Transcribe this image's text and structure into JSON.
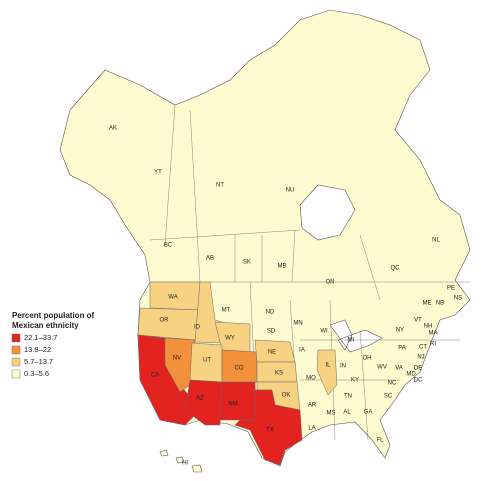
{
  "legend": {
    "title": [
      "Percent population of",
      "Mexican ethnicity"
    ],
    "classes": [
      {
        "label": "22.1–33.7",
        "color": "#e3231f"
      },
      {
        "label": "13.8–22",
        "color": "#f2903c"
      },
      {
        "label": "5.7–13.7",
        "color": "#f8d283"
      },
      {
        "label": "0.3–5.6",
        "color": "#fffbd0"
      }
    ]
  },
  "regions": [
    {
      "label": "AK"
    },
    {
      "label": "YT"
    },
    {
      "label": "NT"
    },
    {
      "label": "NU"
    },
    {
      "label": "BC"
    },
    {
      "label": "AB"
    },
    {
      "label": "SK"
    },
    {
      "label": "MB"
    },
    {
      "label": "ON"
    },
    {
      "label": "QC"
    },
    {
      "label": "NL"
    },
    {
      "label": "PE"
    },
    {
      "label": "NS"
    },
    {
      "label": "NB"
    },
    {
      "label": "WA",
      "class": 2
    },
    {
      "label": "OR",
      "class": 2
    },
    {
      "label": "CA",
      "class": 0
    },
    {
      "label": "NV",
      "class": 1
    },
    {
      "label": "ID",
      "class": 2
    },
    {
      "label": "MT",
      "class": 3
    },
    {
      "label": "WY",
      "class": 2
    },
    {
      "label": "UT",
      "class": 2
    },
    {
      "label": "AZ",
      "class": 0
    },
    {
      "label": "NM",
      "class": 0
    },
    {
      "label": "CO",
      "class": 1
    },
    {
      "label": "ND",
      "class": 3
    },
    {
      "label": "SD",
      "class": 3
    },
    {
      "label": "NE",
      "class": 2
    },
    {
      "label": "KS",
      "class": 2
    },
    {
      "label": "OK",
      "class": 2
    },
    {
      "label": "TX",
      "class": 0
    },
    {
      "label": "MN",
      "class": 3
    },
    {
      "label": "IA",
      "class": 3
    },
    {
      "label": "MO",
      "class": 3
    },
    {
      "label": "AR",
      "class": 3
    },
    {
      "label": "LA",
      "class": 3
    },
    {
      "label": "WI",
      "class": 3
    },
    {
      "label": "IL",
      "class": 2
    },
    {
      "label": "MI",
      "class": 3
    },
    {
      "label": "IN",
      "class": 3
    },
    {
      "label": "OH",
      "class": 3
    },
    {
      "label": "KY",
      "class": 3
    },
    {
      "label": "TN",
      "class": 3
    },
    {
      "label": "MS",
      "class": 3
    },
    {
      "label": "AL",
      "class": 3
    },
    {
      "label": "GA",
      "class": 3
    },
    {
      "label": "FL",
      "class": 3
    },
    {
      "label": "SC",
      "class": 3
    },
    {
      "label": "NC",
      "class": 3
    },
    {
      "label": "VA",
      "class": 3
    },
    {
      "label": "WV",
      "class": 3
    },
    {
      "label": "PA",
      "class": 3
    },
    {
      "label": "NY",
      "class": 3
    },
    {
      "label": "ME",
      "class": 3
    },
    {
      "label": "VT",
      "class": 3
    },
    {
      "label": "NH",
      "class": 3
    },
    {
      "label": "MA",
      "class": 3
    },
    {
      "label": "RI",
      "class": 3
    },
    {
      "label": "CT",
      "class": 3
    },
    {
      "label": "NJ",
      "class": 3
    },
    {
      "label": "DE",
      "class": 3
    },
    {
      "label": "MD",
      "class": 3
    },
    {
      "label": "DC",
      "class": 3
    },
    {
      "label": "HI",
      "class": 3
    }
  ]
}
